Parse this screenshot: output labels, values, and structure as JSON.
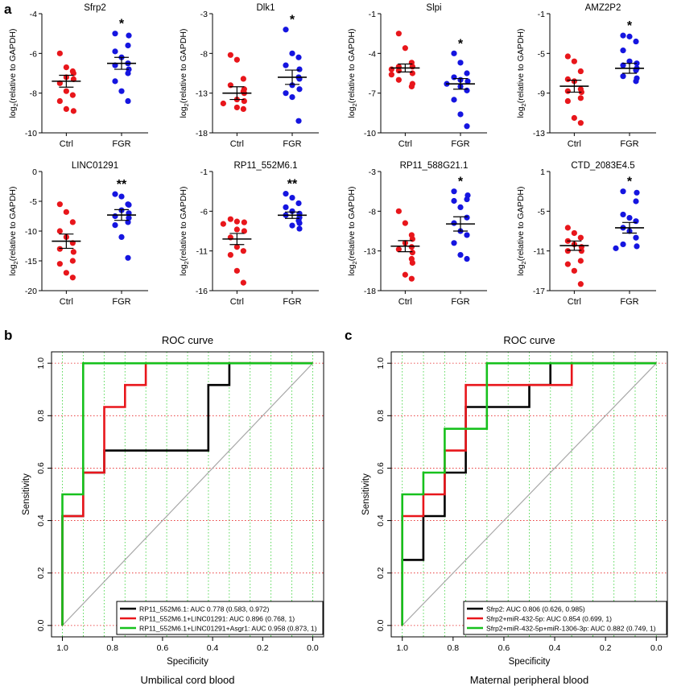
{
  "panel_labels": [
    "a",
    "b",
    "c"
  ],
  "chart_data": [
    {
      "type": "scatter",
      "panel": "a",
      "title": "Sfrp2",
      "ylabel_prefix": "log",
      "ylabel_sub": "2",
      "ylabel_rest": "(relative to GAPDH)",
      "ylim": [
        -10,
        -4
      ],
      "yticks": [
        -10,
        -8,
        -6,
        -4
      ],
      "categories": [
        "Ctrl",
        "FGR"
      ],
      "significance": "*",
      "series": [
        {
          "name": "Ctrl",
          "color": "#e8161b",
          "values": [
            -6.0,
            -6.7,
            -6.9,
            -7.0,
            -7.2,
            -7.3,
            -7.5,
            -7.9,
            -8.1,
            -8.4,
            -8.8,
            -8.9
          ],
          "mean": -7.4,
          "sem": 0.3
        },
        {
          "name": "FGR",
          "color": "#1515e0",
          "values": [
            -5.0,
            -5.1,
            -5.6,
            -5.9,
            -6.2,
            -6.5,
            -6.6,
            -6.8,
            -7.0,
            -7.4,
            -7.9,
            -8.4
          ],
          "mean": -6.5,
          "sem": 0.3
        }
      ]
    },
    {
      "type": "scatter",
      "panel": "a",
      "title": "Dlk1",
      "ylabel_prefix": "log",
      "ylabel_sub": "2",
      "ylabel_rest": "(relative to GAPDH)",
      "ylim": [
        -18,
        -3
      ],
      "yticks": [
        -18,
        -13,
        -8,
        -3
      ],
      "categories": [
        "Ctrl",
        "FGR"
      ],
      "significance": "*",
      "series": [
        {
          "name": "Ctrl",
          "color": "#e8161b",
          "values": [
            -8.2,
            -8.8,
            -11.2,
            -12.0,
            -12.5,
            -12.8,
            -13.0,
            -13.8,
            -14.0,
            -14.3,
            -14.8,
            -15.0
          ],
          "mean": -13.0,
          "sem": 0.8
        },
        {
          "name": "FGR",
          "color": "#1515e0",
          "values": [
            -5.0,
            -8.0,
            -8.5,
            -9.5,
            -10.0,
            -11.0,
            -11.2,
            -12.0,
            -12.5,
            -13.0,
            -13.5,
            -16.5
          ],
          "mean": -11.0,
          "sem": 0.9
        }
      ]
    },
    {
      "type": "scatter",
      "panel": "a",
      "title": "Slpi",
      "ylabel_prefix": "log",
      "ylabel_sub": "2",
      "ylabel_rest": "(relative to GAPDH)",
      "ylim": [
        -10,
        -1
      ],
      "yticks": [
        -10,
        -7,
        -4,
        -1
      ],
      "categories": [
        "Ctrl",
        "FGR"
      ],
      "significance": "*",
      "series": [
        {
          "name": "Ctrl",
          "color": "#e8161b",
          "values": [
            -2.5,
            -3.6,
            -4.7,
            -5.0,
            -5.0,
            -5.2,
            -5.3,
            -5.5,
            -5.6,
            -6.0,
            -6.3,
            -6.5
          ],
          "mean": -5.1,
          "sem": 0.3
        },
        {
          "name": "FGR",
          "color": "#1515e0",
          "values": [
            -4.0,
            -4.7,
            -5.5,
            -5.8,
            -6.0,
            -6.1,
            -6.3,
            -6.5,
            -6.8,
            -7.5,
            -8.6,
            -9.5
          ],
          "mean": -6.3,
          "sem": 0.4
        }
      ]
    },
    {
      "type": "scatter",
      "panel": "a",
      "title": "AMZ2P2",
      "ylabel_prefix": "log",
      "ylabel_sub": "2",
      "ylabel_rest": "(relative to GAPDH)",
      "ylim": [
        -13,
        -1
      ],
      "yticks": [
        -13,
        -9,
        -5,
        -1
      ],
      "categories": [
        "Ctrl",
        "FGR"
      ],
      "significance": "*",
      "series": [
        {
          "name": "Ctrl",
          "color": "#e8161b",
          "values": [
            -5.3,
            -5.8,
            -6.8,
            -7.6,
            -7.8,
            -8.6,
            -8.8,
            -8.9,
            -9.5,
            -9.8,
            -11.5,
            -12.0
          ],
          "mean": -8.3,
          "sem": 0.6
        },
        {
          "name": "FGR",
          "color": "#1515e0",
          "values": [
            -3.2,
            -3.3,
            -3.8,
            -4.7,
            -5.8,
            -6.0,
            -6.2,
            -6.5,
            -6.7,
            -7.3,
            -7.5,
            -7.8
          ],
          "mean": -6.5,
          "sem": 0.5
        }
      ]
    },
    {
      "type": "scatter",
      "panel": "a",
      "title": "LINC01291",
      "ylabel_prefix": "log",
      "ylabel_sub": "2",
      "ylabel_rest": "(relative to GAPDH)",
      "ylim": [
        -20,
        0
      ],
      "yticks": [
        -20,
        -15,
        -10,
        -5,
        0
      ],
      "categories": [
        "Ctrl",
        "FGR"
      ],
      "significance": "**",
      "series": [
        {
          "name": "Ctrl",
          "color": "#e8161b",
          "values": [
            -5.5,
            -6.8,
            -8.5,
            -10.0,
            -11.0,
            -12.0,
            -13.0,
            -13.5,
            -15.0,
            -15.5,
            -17.0,
            -17.8
          ],
          "mean": -11.7,
          "sem": 1.2
        },
        {
          "name": "FGR",
          "color": "#1515e0",
          "values": [
            -3.8,
            -4.2,
            -5.5,
            -5.6,
            -6.5,
            -7.0,
            -7.5,
            -7.8,
            -8.5,
            -9.0,
            -11.0,
            -14.5
          ],
          "mean": -7.3,
          "sem": 0.9
        }
      ]
    },
    {
      "type": "scatter",
      "panel": "a",
      "title": "RP11_552M6.1",
      "ylabel_prefix": "log",
      "ylabel_sub": "2",
      "ylabel_rest": "(relative to GAPDH)",
      "ylim": [
        -16,
        -1
      ],
      "yticks": [
        -16,
        -11,
        -6,
        -1
      ],
      "categories": [
        "Ctrl",
        "FGR"
      ],
      "significance": "**",
      "series": [
        {
          "name": "Ctrl",
          "color": "#e8161b",
          "values": [
            -7.0,
            -7.3,
            -7.4,
            -7.6,
            -8.3,
            -8.5,
            -9.3,
            -10.5,
            -11.0,
            -11.5,
            -13.5,
            -15.0
          ],
          "mean": -9.5,
          "sem": 0.7
        },
        {
          "name": "FGR",
          "color": "#1515e0",
          "values": [
            -3.8,
            -4.3,
            -5.0,
            -5.5,
            -6.0,
            -6.3,
            -6.5,
            -6.8,
            -7.2,
            -7.5,
            -7.8,
            -8.2
          ],
          "mean": -6.5,
          "sem": 0.4
        }
      ]
    },
    {
      "type": "scatter",
      "panel": "a",
      "title": "RP11_588G21.1",
      "ylabel_prefix": "log",
      "ylabel_sub": "2",
      "ylabel_rest": "(relative to GAPDH)",
      "ylim": [
        -18,
        -3
      ],
      "yticks": [
        -18,
        -13,
        -8,
        -3
      ],
      "categories": [
        "Ctrl",
        "FGR"
      ],
      "significance": "*",
      "series": [
        {
          "name": "Ctrl",
          "color": "#e8161b",
          "values": [
            -8.0,
            -9.5,
            -11.0,
            -11.5,
            -12.0,
            -12.5,
            -12.8,
            -13.2,
            -14.0,
            -14.5,
            -16.0,
            -16.5
          ],
          "mean": -12.4,
          "sem": 0.7
        },
        {
          "name": "FGR",
          "color": "#1515e0",
          "values": [
            -5.5,
            -6.0,
            -6.5,
            -6.7,
            -7.5,
            -8.8,
            -9.5,
            -10.5,
            -11.0,
            -12.0,
            -13.5,
            -14.0
          ],
          "mean": -9.6,
          "sem": 0.9
        }
      ]
    },
    {
      "type": "scatter",
      "panel": "a",
      "title": "CTD_2083E4.5",
      "ylabel_prefix": "log",
      "ylabel_sub": "2",
      "ylabel_rest": "(relative to GAPDH)",
      "ylim": [
        -17,
        1
      ],
      "yticks": [
        -17,
        -11,
        -5,
        1
      ],
      "categories": [
        "Ctrl",
        "FGR"
      ],
      "significance": "*",
      "series": [
        {
          "name": "Ctrl",
          "color": "#e8161b",
          "values": [
            -7.5,
            -8.3,
            -9.0,
            -9.5,
            -10.0,
            -10.4,
            -11.0,
            -11.0,
            -12.5,
            -13.0,
            -14.0,
            -16.0
          ],
          "mean": -10.2,
          "sem": 0.7
        },
        {
          "name": "FGR",
          "color": "#1515e0",
          "values": [
            -2.0,
            -2.2,
            -3.5,
            -5.5,
            -6.0,
            -6.5,
            -7.5,
            -8.0,
            -9.0,
            -10.0,
            -10.3,
            -10.6
          ],
          "mean": -7.5,
          "sem": 0.8
        }
      ]
    },
    {
      "type": "line",
      "panel": "b",
      "title": "ROC curve",
      "xlabel": "Specificity",
      "ylabel": "Sensitivity",
      "caption": "Umbilical cord blood",
      "xlim": [
        1.0,
        0.0
      ],
      "ylim": [
        0.0,
        1.0
      ],
      "xticks": [
        1.0,
        0.8,
        0.6,
        0.4,
        0.2,
        0.0
      ],
      "yticks": [
        0.0,
        0.2,
        0.4,
        0.6,
        0.8,
        1.0
      ],
      "xtick_labels": [
        "1.0",
        "0.8",
        "0.6",
        "0.4",
        "0.2",
        "0.0"
      ],
      "ytick_labels": [
        "0.0",
        "0.2",
        "0.4",
        "0.6",
        "0.8",
        "1.0"
      ],
      "grid": true,
      "legend_position": "bottom-right",
      "series": [
        {
          "name": "RP11_552M6.1: AUC 0.778 (0.583, 0.972)",
          "color": "#000000",
          "x": [
            1.0,
            1.0,
            0.917,
            0.917,
            0.833,
            0.833,
            0.417,
            0.417,
            0.333,
            0.333,
            0.0
          ],
          "y": [
            0.0,
            0.417,
            0.417,
            0.583,
            0.583,
            0.667,
            0.667,
            0.917,
            0.917,
            1.0,
            1.0
          ]
        },
        {
          "name": "RP11_552M6.1+LINC01291: AUC 0.896 (0.768, 1)",
          "color": "#e8161b",
          "x": [
            1.0,
            1.0,
            0.917,
            0.917,
            0.833,
            0.833,
            0.75,
            0.75,
            0.667,
            0.667,
            0.0
          ],
          "y": [
            0.0,
            0.417,
            0.417,
            0.583,
            0.583,
            0.833,
            0.833,
            0.917,
            0.917,
            1.0,
            1.0
          ]
        },
        {
          "name": "RP11_552M6.1+LINC01291+Asgr1: AUC 0.958 (0.873, 1)",
          "color": "#17c11d",
          "x": [
            1.0,
            1.0,
            0.917,
            0.917,
            0.0
          ],
          "y": [
            0.0,
            0.5,
            0.5,
            1.0,
            1.0
          ]
        }
      ]
    },
    {
      "type": "line",
      "panel": "c",
      "title": "ROC curve",
      "xlabel": "Specificity",
      "ylabel": "Sensitivity",
      "caption": "Maternal peripheral blood",
      "xlim": [
        1.0,
        0.0
      ],
      "ylim": [
        0.0,
        1.0
      ],
      "xticks": [
        1.0,
        0.8,
        0.6,
        0.4,
        0.2,
        0.0
      ],
      "yticks": [
        0.0,
        0.2,
        0.4,
        0.6,
        0.8,
        1.0
      ],
      "xtick_labels": [
        "1.0",
        "0.8",
        "0.6",
        "0.4",
        "0.2",
        "0.0"
      ],
      "ytick_labels": [
        "0.0",
        "0.2",
        "0.4",
        "0.6",
        "0.8",
        "1.0"
      ],
      "grid": true,
      "legend_position": "bottom-right",
      "series": [
        {
          "name": "Sfrp2: AUC 0.806 (0.626, 0.985)",
          "color": "#000000",
          "x": [
            1.0,
            1.0,
            0.917,
            0.917,
            0.833,
            0.833,
            0.75,
            0.75,
            0.5,
            0.5,
            0.417,
            0.417,
            0.0
          ],
          "y": [
            0.0,
            0.25,
            0.25,
            0.417,
            0.417,
            0.583,
            0.583,
            0.833,
            0.833,
            0.917,
            0.917,
            1.0,
            1.0
          ]
        },
        {
          "name": "Sfrp2+miR-432-5p: AUC 0.854 (0.699, 1)",
          "color": "#e8161b",
          "x": [
            1.0,
            1.0,
            0.917,
            0.917,
            0.833,
            0.833,
            0.75,
            0.75,
            0.333,
            0.333,
            0.0
          ],
          "y": [
            0.0,
            0.417,
            0.417,
            0.5,
            0.5,
            0.667,
            0.667,
            0.917,
            0.917,
            1.0,
            1.0
          ]
        },
        {
          "name": "Sfrp2+miR-432-5p+miR-1306-3p: AUC 0.882 (0.749, 1)",
          "color": "#17c11d",
          "x": [
            1.0,
            1.0,
            0.917,
            0.917,
            0.833,
            0.833,
            0.667,
            0.667,
            0.0
          ],
          "y": [
            0.0,
            0.5,
            0.5,
            0.583,
            0.583,
            0.75,
            0.75,
            1.0,
            1.0
          ]
        }
      ]
    }
  ]
}
